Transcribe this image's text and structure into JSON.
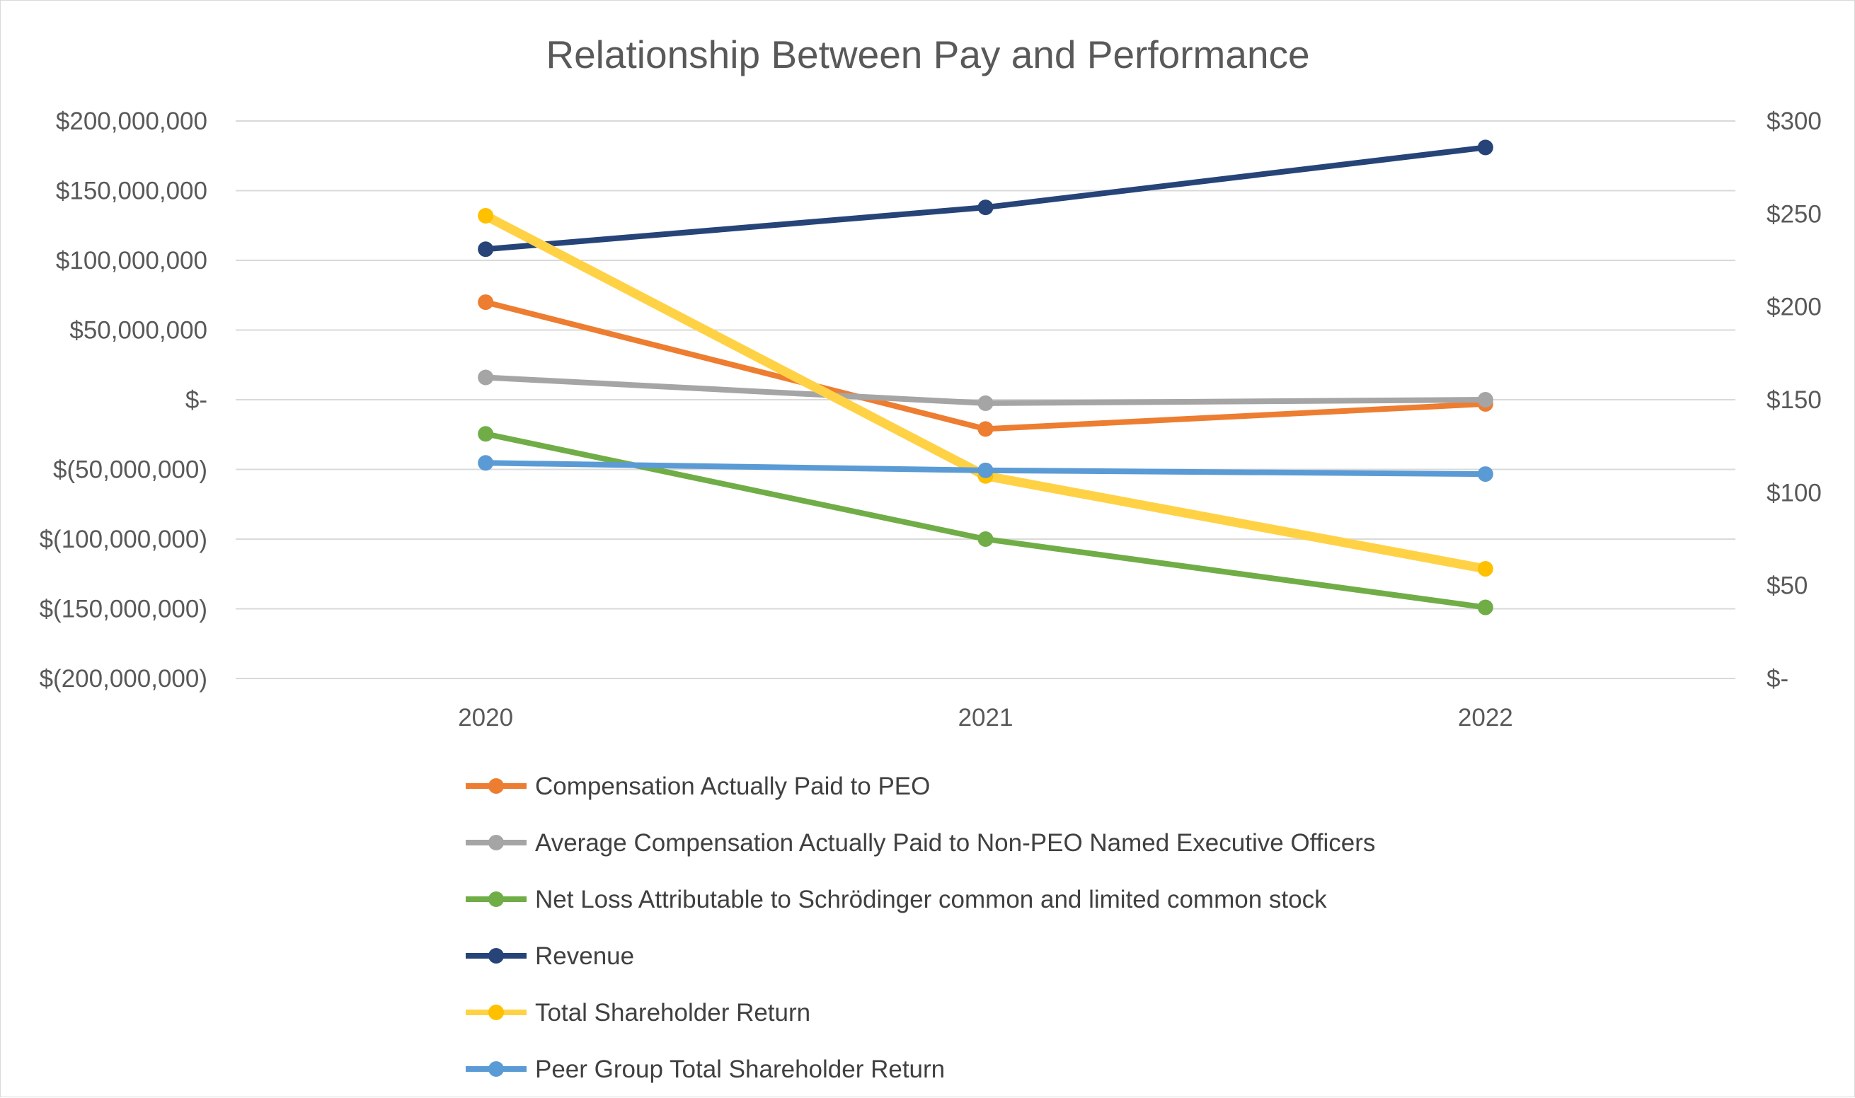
{
  "chart_data": {
    "type": "line",
    "title": "Relationship Between Pay and Performance",
    "categories": [
      "2020",
      "2021",
      "2022"
    ],
    "xlabel": "",
    "ylabel": "",
    "y_left": {
      "range": [
        -200000000,
        200000000
      ],
      "ticks": [
        200000000,
        150000000,
        100000000,
        50000000,
        0,
        -50000000,
        -100000000,
        -150000000,
        -200000000
      ],
      "tick_labels": [
        "$200,000,000",
        "$150,000,000",
        "$100,000,000",
        "$50,000,000",
        "$-",
        "$(50,000,000)",
        "$(100,000,000)",
        "$(150,000,000)",
        "$(200,000,000)"
      ]
    },
    "y_right": {
      "range": [
        0,
        300
      ],
      "ticks": [
        300,
        250,
        200,
        150,
        100,
        50,
        0
      ],
      "tick_labels": [
        "$300",
        "$250",
        "$200",
        "$150",
        "$100",
        "$50",
        "$-"
      ]
    },
    "grid": true,
    "legend_position": "bottom",
    "series": [
      {
        "name": "Compensation Actually Paid to PEO",
        "axis": "left",
        "color": "#ed7d31",
        "values": [
          70000000,
          -21000000,
          -3000000
        ]
      },
      {
        "name": "Average Compensation Actually Paid to Non-PEO Named Executive Officers",
        "axis": "left",
        "color": "#a5a5a5",
        "values": [
          16000000,
          -2500000,
          0
        ]
      },
      {
        "name": "Net Loss Attributable to Schrödinger common and limited common stock",
        "axis": "left",
        "color": "#70ad47",
        "values": [
          -24500000,
          -100000000,
          -149000000
        ]
      },
      {
        "name": "Revenue",
        "axis": "left",
        "color": "#264478",
        "values": [
          108000000,
          138000000,
          181000000
        ]
      },
      {
        "name": "Total Shareholder Return",
        "axis": "right",
        "color": "#ffc000",
        "line_color": "#ffd246",
        "values": [
          249,
          109,
          59
        ]
      },
      {
        "name": "Peer Group Total Shareholder Return",
        "axis": "right",
        "color": "#5b9bd5",
        "values": [
          116,
          112,
          110
        ]
      }
    ]
  }
}
